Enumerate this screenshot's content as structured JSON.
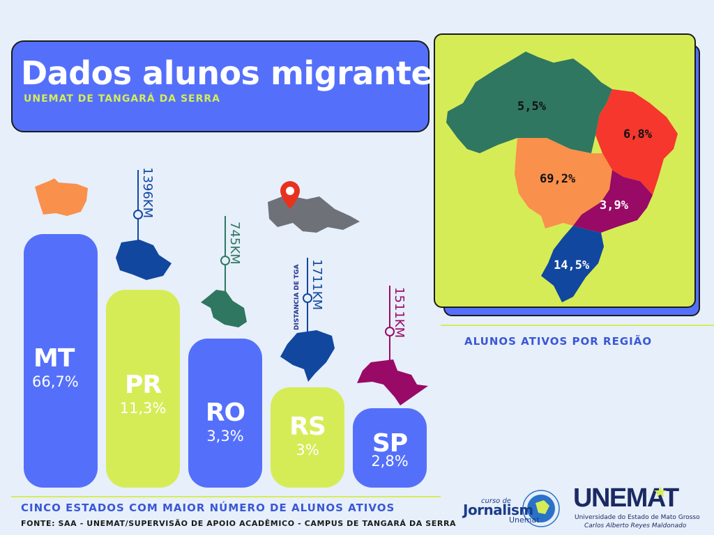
{
  "header": {
    "title": "Dados alunos migrantes",
    "subtitle": "UNEMAT DE TANGARÁ DA SERRA"
  },
  "colors": {
    "blue": "#5470fa",
    "lime": "#d6ec57",
    "orange": "#f9904c",
    "green": "#2f7760",
    "navy": "#11479e",
    "magenta": "#980a66",
    "red": "#f5372d",
    "gray": "#6e7178",
    "pin": "#e8321f"
  },
  "chart_data": [
    {
      "type": "bar",
      "title": "",
      "caption": "CINCO ESTADOS COM MAIOR NÚMERO DE ALUNOS ATIVOS",
      "categories": [
        "MT",
        "PR",
        "RO",
        "RS",
        "SP"
      ],
      "values": [
        66.7,
        11.3,
        3.3,
        3,
        2.8
      ],
      "value_labels": [
        "66,7%",
        "11,3%",
        "3,3%",
        "3%",
        "2,8%"
      ],
      "distance_title": "DISTANCIA DE TGA",
      "distances": [
        {
          "state": "PR",
          "label": "1396KM"
        },
        {
          "state": "RO",
          "label": "745KM"
        },
        {
          "state": "RS",
          "label": "1711KM"
        },
        {
          "state": "SP",
          "label": "1511KM"
        }
      ]
    },
    {
      "type": "map",
      "caption": "ALUNOS ATIVOS POR REGIÃO",
      "regions": [
        {
          "label": "5,5%",
          "value": 5.5
        },
        {
          "label": "6,8%",
          "value": 6.8
        },
        {
          "label": "69,2%",
          "value": 69.2
        },
        {
          "label": "3,9%",
          "value": 3.9
        },
        {
          "label": "14,5%",
          "value": 14.5
        }
      ]
    }
  ],
  "footer": {
    "source": "FONTE: SAA - UNEMAT/SUPERVISÃO DE APOIO ACADÊMICO - CAMPUS DE TANGARÁ DA SERRA"
  },
  "logos": {
    "journal_line1": "curso de",
    "journal_line2": "Jornalism",
    "journal_line3": "Unemat",
    "unemat_name": "UNEMAT",
    "unemat_full": "Universidade do Estado de Mato Grosso",
    "unemat_person": "Carlos Alberto Reyes Maldonado"
  }
}
